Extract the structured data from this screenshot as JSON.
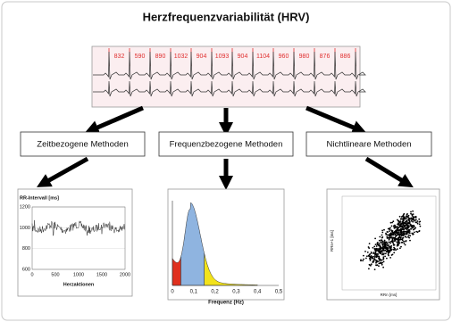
{
  "title": "Herzfrequenzvariabilität (HRV)",
  "ecg": {
    "intervals": [
      "832",
      "590",
      "890",
      "1032",
      "904",
      "1093",
      "904",
      "1104",
      "960",
      "980",
      "876",
      "886"
    ]
  },
  "methods": [
    {
      "label": "Zeitbezogene Methoden"
    },
    {
      "label": "Frequenzbezogene Methoden"
    },
    {
      "label": "Nichtlineare Methoden"
    }
  ],
  "time_domain": {
    "y_label": "RR-Intervall [ms]",
    "y_ticks": [
      "1200",
      "1000",
      "800",
      "600"
    ],
    "x_ticks": [
      "0",
      "500",
      "1000",
      "1500",
      "2000"
    ],
    "x_label": "Herzaktionen"
  },
  "frequency_domain": {
    "x_ticks": [
      "0",
      "0,1",
      "0,2",
      "0,3",
      "0,4",
      "0,5"
    ],
    "x_label": "Frequenz (Hz)"
  },
  "nonlinear": {
    "y_label": "RRn+1 [ms]",
    "x_label": "RRn [ms]"
  }
}
